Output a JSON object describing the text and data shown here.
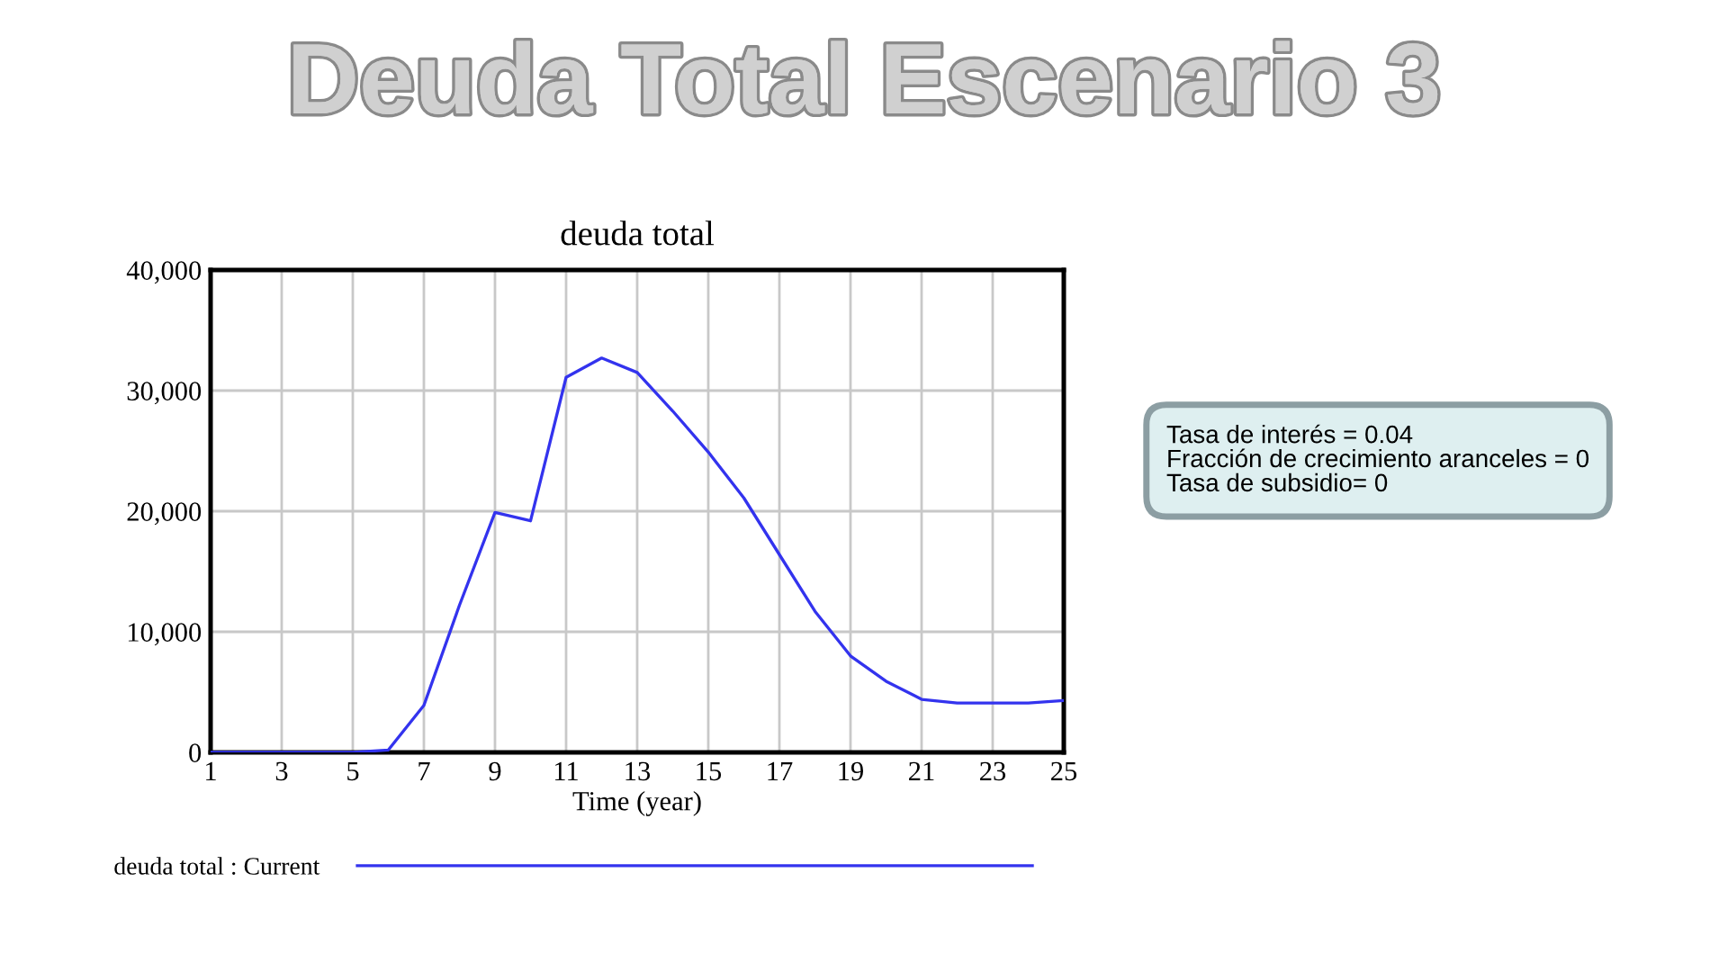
{
  "chart_data": {
    "type": "line",
    "title": "Deuda Total Escenario 3",
    "subtitle": "deuda total",
    "xlabel": "Time (year)",
    "x": [
      1,
      2,
      3,
      4,
      5,
      6,
      7,
      8,
      9,
      10,
      11,
      12,
      13,
      14,
      15,
      16,
      17,
      18,
      19,
      20,
      21,
      22,
      23,
      24,
      25
    ],
    "series": [
      {
        "name": "deuda total : Current",
        "color": "#3333ee",
        "values": [
          0,
          0,
          0,
          0,
          0,
          200,
          3900,
          12200,
          19900,
          19200,
          31100,
          32700,
          31500,
          28300,
          24900,
          21100,
          16400,
          11700,
          8000,
          5900,
          4400,
          4100,
          4100,
          4100,
          4300
        ]
      }
    ],
    "xlim": [
      1,
      25
    ],
    "xticks": [
      1,
      3,
      5,
      7,
      9,
      11,
      13,
      15,
      17,
      19,
      21,
      23,
      25
    ],
    "ylim": [
      0,
      40000
    ],
    "yticks": [
      {
        "value": 0,
        "label": "0"
      },
      {
        "value": 10000,
        "label": "10,000"
      },
      {
        "value": 20000,
        "label": "20,000"
      },
      {
        "value": 30000,
        "label": "30,000"
      },
      {
        "value": 40000,
        "label": "40,000"
      }
    ],
    "grid": true,
    "legend": "bottom",
    "marker": "none",
    "line_style": "solid",
    "annotations": [
      "Tasa de interés = 0.04\nFracción de crecimiento aranceles = 0\nTasa de subsidio= 0"
    ]
  }
}
